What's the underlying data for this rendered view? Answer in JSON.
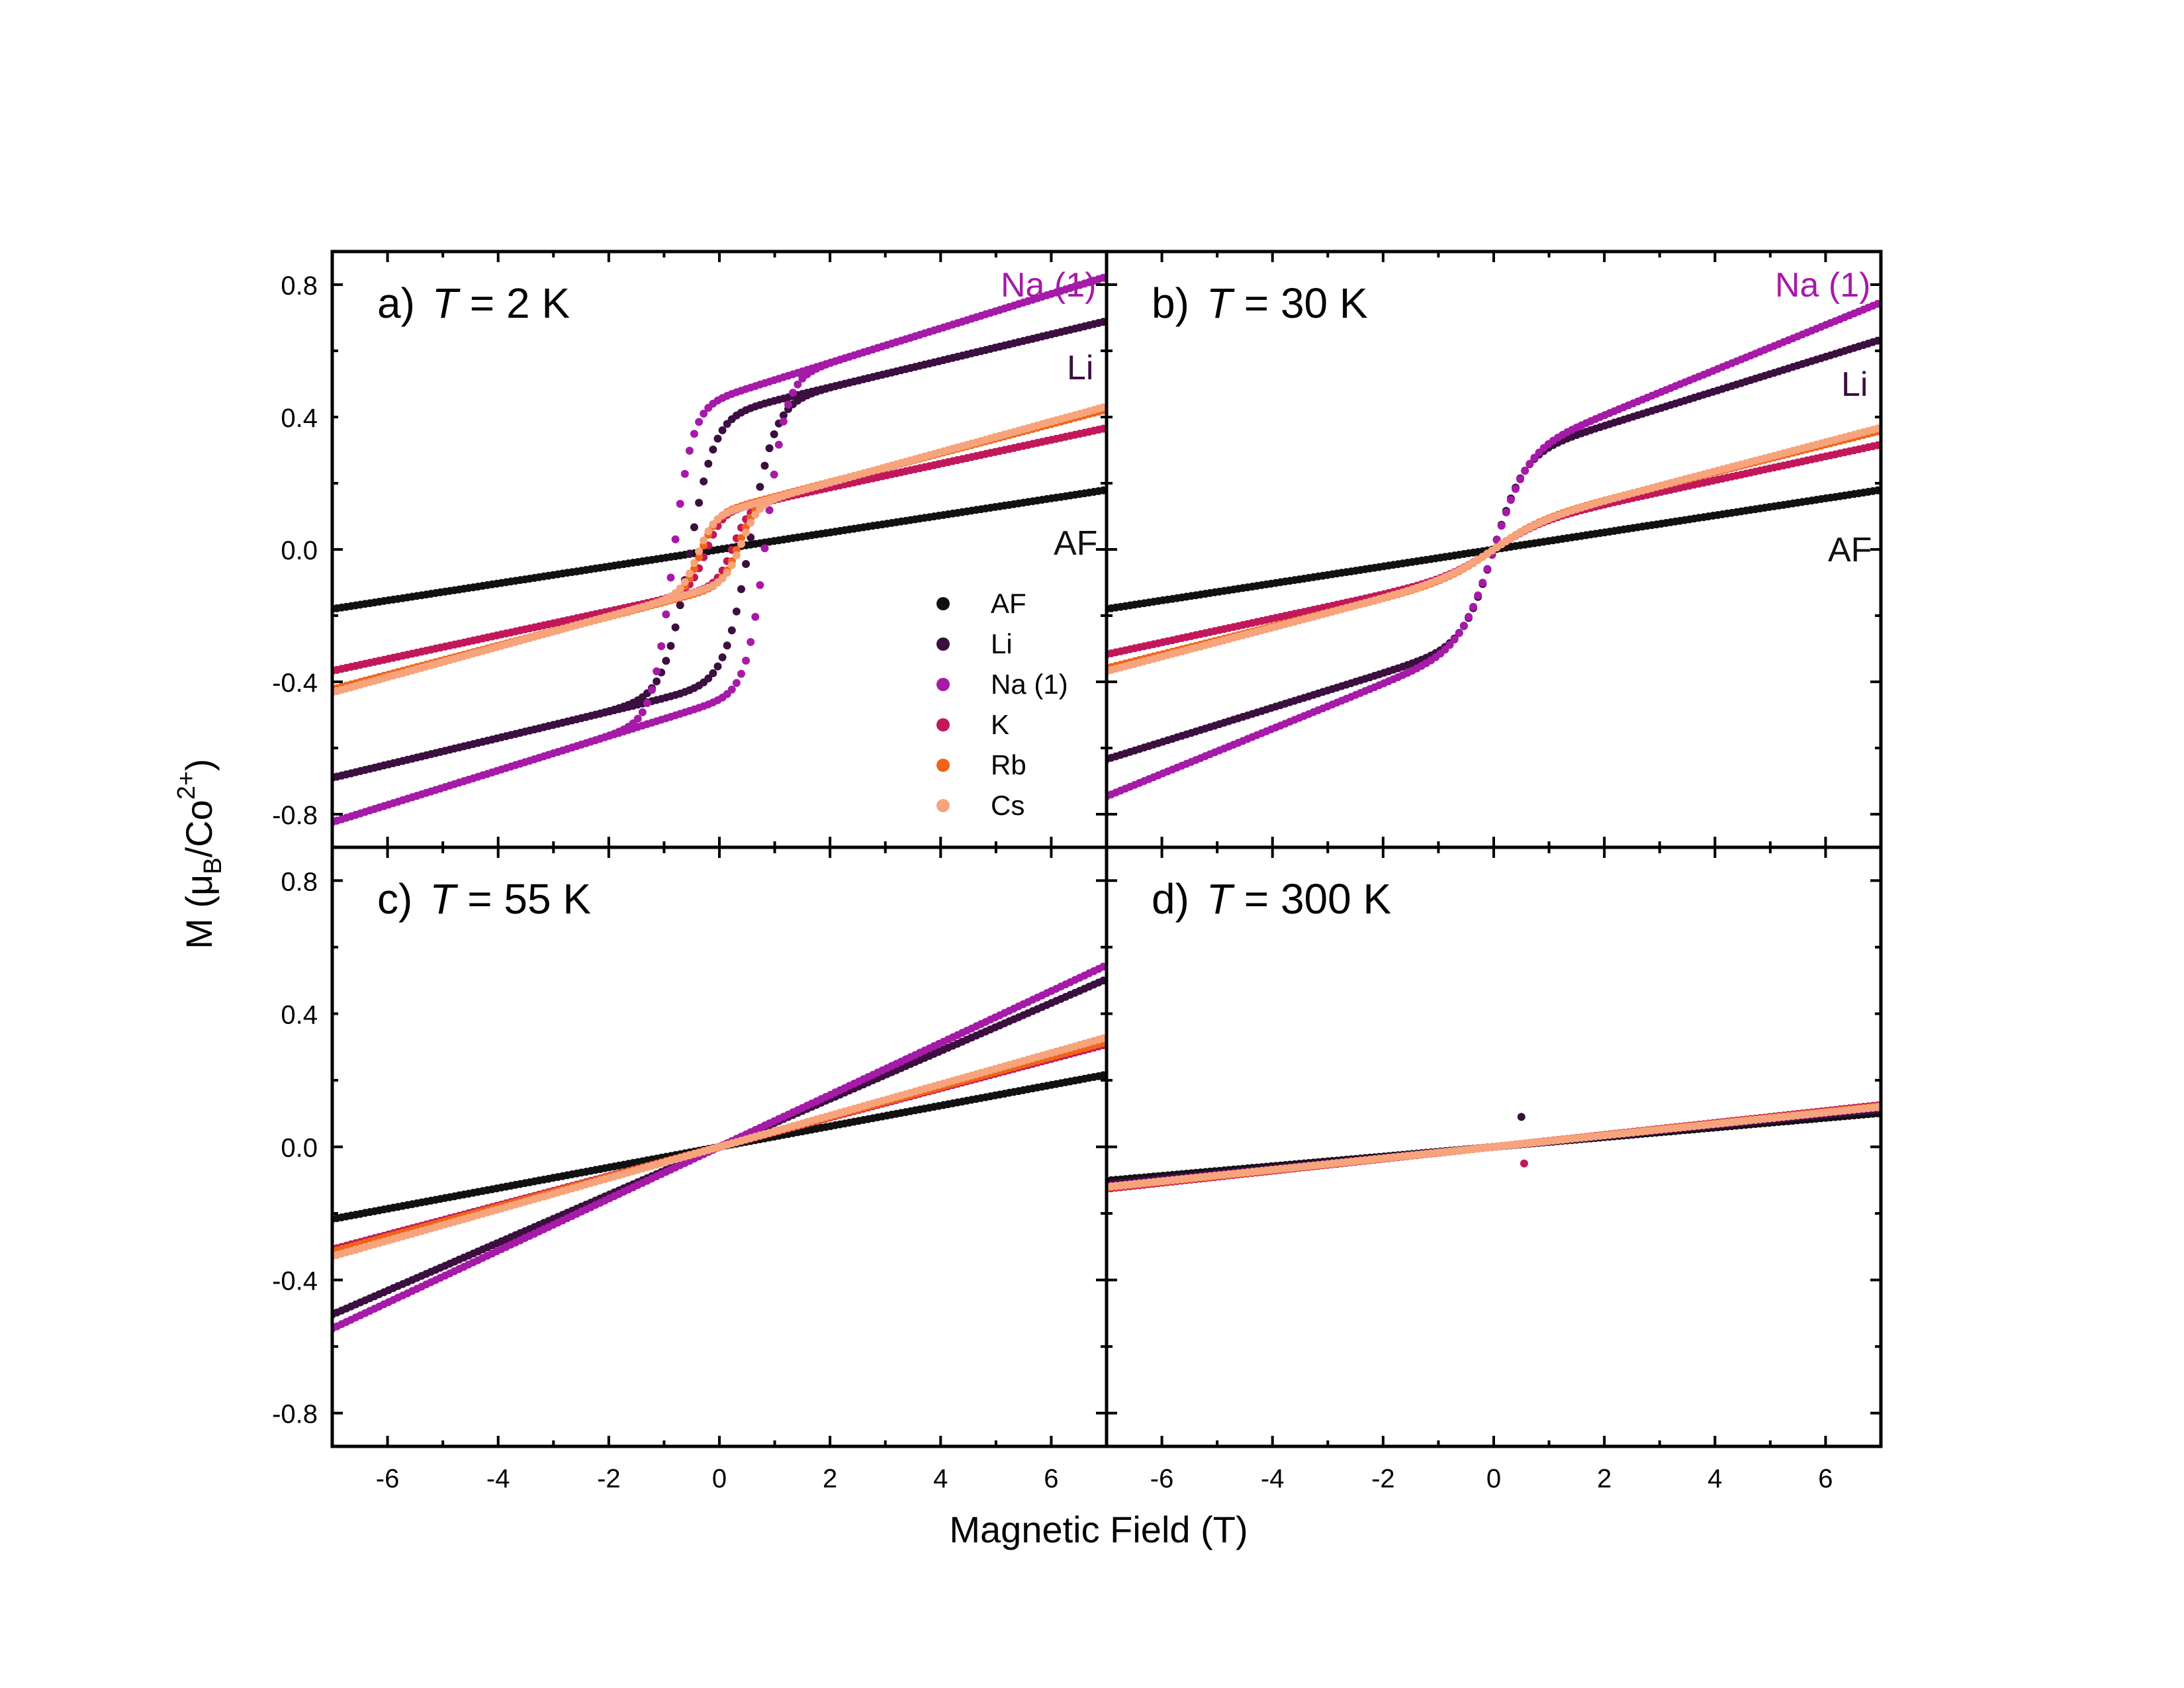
{
  "figure": {
    "xlabel": "Magnetic Field (T)",
    "ylabel": "M (μ",
    "ylabel_sub": "B",
    "ylabel_mid": "/Co",
    "ylabel_sup": "2+",
    "ylabel_end": ")"
  },
  "legend": [
    {
      "name": "AF",
      "color": "#111111"
    },
    {
      "name": "Li",
      "color": "#3b0f3f"
    },
    {
      "name": "Na (1)",
      "color": "#a61aa8"
    },
    {
      "name": "K",
      "color": "#c2185b"
    },
    {
      "name": "Rb",
      "color": "#f06418"
    },
    {
      "name": "Cs",
      "color": "#f7a47c"
    }
  ],
  "chart_data": [
    {
      "type": "scatter",
      "panel_label": "a)",
      "temp_symbol": "T",
      "temp_text": " = 2 K",
      "xlim": [
        -7,
        7
      ],
      "ylim": [
        -0.9,
        0.9
      ],
      "xticks": [
        -6,
        -4,
        -2,
        0,
        2,
        4,
        6
      ],
      "yticks": [
        "-0.8",
        "-0.4",
        "0.0",
        "0.4",
        "0.8"
      ],
      "curve_labels": [
        {
          "text": "Na (1)",
          "color": "#a61aa8"
        },
        {
          "text": "Li",
          "color": "#3b0f3f"
        },
        {
          "text": "AF",
          "color": "#111111"
        }
      ],
      "series": [
        {
          "name": "AF",
          "model": "linear",
          "slope": 0.0257,
          "Ms": 0,
          "h": 1,
          "Hc": 0
        },
        {
          "name": "Li",
          "model": "hyst",
          "slope": 0.04,
          "Ms": 0.41,
          "h": 0.45,
          "Hc": 0.55
        },
        {
          "name": "Na (1)",
          "model": "hyst",
          "slope": 0.052,
          "Ms": 0.46,
          "h": 0.35,
          "Hc": 0.85
        },
        {
          "name": "K",
          "model": "hyst",
          "slope": 0.036,
          "Ms": 0.115,
          "h": 0.3,
          "Hc": 0.25
        },
        {
          "name": "Rb",
          "model": "hyst",
          "slope": 0.044,
          "Ms": 0.115,
          "h": 0.3,
          "Hc": 0.35
        },
        {
          "name": "Cs",
          "model": "hyst",
          "slope": 0.046,
          "Ms": 0.11,
          "h": 0.3,
          "Hc": 0.4
        }
      ],
      "show_legend": true
    },
    {
      "type": "scatter",
      "panel_label": "b)",
      "temp_symbol": "T",
      "temp_text": " = 30 K",
      "xlim": [
        -7,
        7
      ],
      "ylim": [
        -0.9,
        0.9
      ],
      "xticks": [
        -6,
        -4,
        -2,
        0,
        2,
        4,
        6
      ],
      "yticks": [
        "-0.8",
        "-0.4",
        "0.0",
        "0.4",
        "0.8"
      ],
      "curve_labels": [
        {
          "text": "Na (1)",
          "color": "#a61aa8"
        },
        {
          "text": "Li",
          "color": "#3b0f3f"
        },
        {
          "text": "AF",
          "color": "#111111"
        }
      ],
      "series": [
        {
          "name": "AF",
          "model": "linear",
          "slope": 0.0257,
          "Ms": 0,
          "h": 1,
          "Hc": 0
        },
        {
          "name": "Li",
          "model": "tanh",
          "slope": 0.052,
          "Ms": 0.27,
          "h": 0.55,
          "Hc": 0
        },
        {
          "name": "Na (1)",
          "model": "tanh",
          "slope": 0.068,
          "Ms": 0.27,
          "h": 0.6,
          "Hc": 0
        },
        {
          "name": "K",
          "model": "tanh",
          "slope": 0.036,
          "Ms": 0.065,
          "h": 0.9,
          "Hc": 0
        },
        {
          "name": "Rb",
          "model": "tanh",
          "slope": 0.042,
          "Ms": 0.065,
          "h": 0.9,
          "Hc": 0
        },
        {
          "name": "Cs",
          "model": "tanh",
          "slope": 0.044,
          "Ms": 0.06,
          "h": 0.9,
          "Hc": 0
        }
      ],
      "show_legend": false
    },
    {
      "type": "scatter",
      "panel_label": "c)",
      "temp_symbol": "T",
      "temp_text": " = 55 K",
      "xlim": [
        -7,
        7
      ],
      "ylim": [
        -0.9,
        0.9
      ],
      "xticks": [
        -6,
        -4,
        -2,
        0,
        2,
        4,
        6
      ],
      "yticks": [
        "-0.8",
        "-0.4",
        "0.0",
        "0.4",
        "0.8"
      ],
      "curve_labels": [],
      "series": [
        {
          "name": "AF",
          "model": "linear",
          "slope": 0.031,
          "Ms": 0,
          "h": 1,
          "Hc": 0
        },
        {
          "name": "Li",
          "model": "linear",
          "slope": 0.072,
          "Ms": 0,
          "h": 1,
          "Hc": 0
        },
        {
          "name": "Na (1)",
          "model": "linear",
          "slope": 0.078,
          "Ms": 0,
          "h": 1,
          "Hc": 0
        },
        {
          "name": "K",
          "model": "linear",
          "slope": 0.044,
          "Ms": 0,
          "h": 1,
          "Hc": 0
        },
        {
          "name": "Rb",
          "model": "linear",
          "slope": 0.045,
          "Ms": 0,
          "h": 1,
          "Hc": 0
        },
        {
          "name": "Cs",
          "model": "linear",
          "slope": 0.047,
          "Ms": 0,
          "h": 1,
          "Hc": 0
        }
      ],
      "show_legend": false
    },
    {
      "type": "scatter",
      "panel_label": "d)",
      "temp_symbol": "T",
      "temp_text": " = 300 K",
      "xlim": [
        -7,
        7
      ],
      "ylim": [
        -0.9,
        0.9
      ],
      "xticks": [
        -6,
        -4,
        -2,
        0,
        2,
        4,
        6
      ],
      "yticks": [
        "-0.8",
        "-0.4",
        "0.0",
        "0.4",
        "0.8"
      ],
      "curve_labels": [],
      "series": [
        {
          "name": "AF",
          "model": "linear",
          "slope": 0.0145,
          "Ms": 0,
          "h": 1,
          "Hc": 0
        },
        {
          "name": "Li",
          "model": "linear",
          "slope": 0.016,
          "Ms": 0,
          "h": 1,
          "Hc": 0
        },
        {
          "name": "Na (1)",
          "model": "linear",
          "slope": 0.017,
          "Ms": 0,
          "h": 1,
          "Hc": 0
        },
        {
          "name": "K",
          "model": "linear",
          "slope": 0.018,
          "Ms": 0,
          "h": 1,
          "Hc": 0
        },
        {
          "name": "Rb",
          "model": "linear",
          "slope": 0.0175,
          "Ms": 0,
          "h": 1,
          "Hc": 0
        },
        {
          "name": "Cs",
          "model": "linear",
          "slope": 0.0172,
          "Ms": 0,
          "h": 1,
          "Hc": 0
        }
      ],
      "outliers": [
        {
          "x": 0.5,
          "y": 0.09,
          "series": "Li"
        },
        {
          "x": 0.55,
          "y": -0.05,
          "series": "K"
        }
      ],
      "show_legend": false
    }
  ]
}
